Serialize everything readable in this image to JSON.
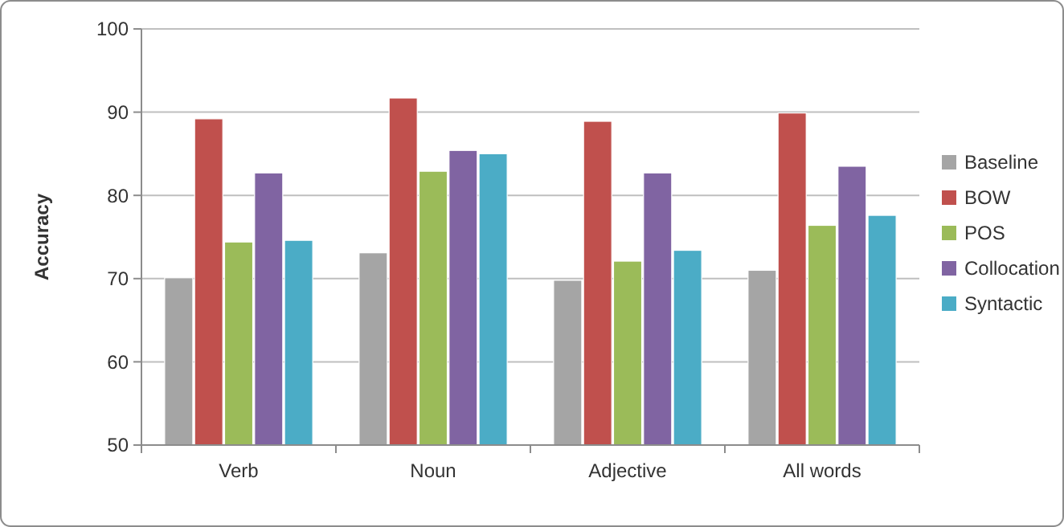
{
  "chart_data": {
    "type": "bar",
    "ylabel": "Accuracy",
    "categories": [
      "Verb",
      "Noun",
      "Adjective",
      "All words"
    ],
    "series": [
      {
        "name": "Baseline",
        "color": "#a5a5a5",
        "values": [
          70.1,
          73.1,
          69.8,
          71.0
        ]
      },
      {
        "name": "BOW",
        "color": "#c0504d",
        "values": [
          89.2,
          91.7,
          88.9,
          89.9
        ]
      },
      {
        "name": "POS",
        "color": "#9bbb59",
        "values": [
          74.4,
          82.9,
          72.1,
          76.4
        ]
      },
      {
        "name": "Collocation",
        "color": "#8064a2",
        "values": [
          82.7,
          85.4,
          82.7,
          83.5
        ]
      },
      {
        "name": "Syntactic",
        "color": "#4bacc6",
        "values": [
          74.6,
          85.0,
          73.4,
          77.6
        ]
      }
    ],
    "ylim": [
      50,
      100
    ],
    "yticks": [
      50,
      60,
      70,
      80,
      90,
      100
    ],
    "grid": "y",
    "legend": "right"
  }
}
